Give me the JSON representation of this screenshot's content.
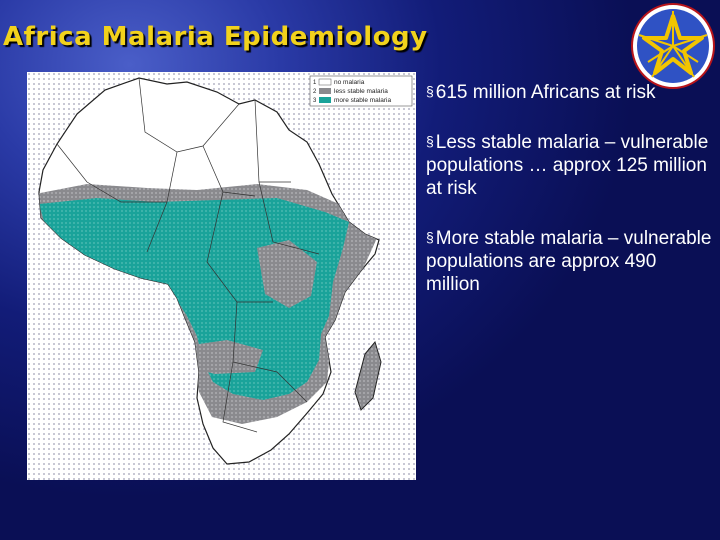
{
  "slide": {
    "title": "Africa Malaria Epidemiology",
    "bullet_marker": "§",
    "bullets": [
      "615 million Africans at risk",
      "Less stable malaria – vulnerable populations … approx 125 million at risk",
      "More stable malaria – vulnerable populations are approx 490 million"
    ]
  },
  "map": {
    "legend": {
      "items": [
        {
          "key": "1",
          "label": "no malaria",
          "color": "#ffffff"
        },
        {
          "key": "2",
          "label": "less stable malaria",
          "color": "#8a8a8e"
        },
        {
          "key": "3",
          "label": "more stable malaria",
          "color": "#1aa39a"
        }
      ]
    },
    "colors": {
      "no_malaria_dots": "#c8c8d4",
      "border": "#222222",
      "panel": "#ffffff"
    }
  },
  "emblem": {
    "icon": "ethiopia-star-emblem-icon",
    "colors": {
      "ring": "#2f52c4",
      "inner": "#ffffff",
      "star": "#f2c500"
    }
  }
}
